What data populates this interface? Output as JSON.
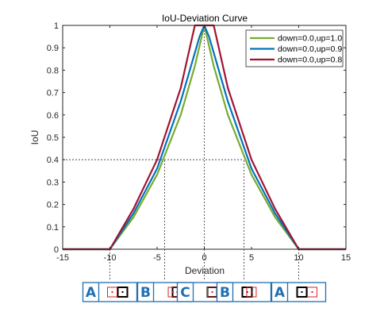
{
  "chart_data": {
    "type": "line",
    "title": "IoU-Deviation Curve",
    "xlabel": "Deviation",
    "ylabel": "IoU",
    "xlim": [
      -15,
      15
    ],
    "ylim": [
      0,
      1
    ],
    "xticks": [
      "-15",
      "-10",
      "-5",
      "0",
      "5",
      "10",
      "15"
    ],
    "yticks": [
      "0",
      "0.1",
      "0.2",
      "0.3",
      "0.4",
      "0.5",
      "0.6",
      "0.7",
      "0.8",
      "0.9",
      "1"
    ],
    "grid": false,
    "legend_position": "top-right",
    "series": [
      {
        "name": "down=0.0,up=1.0",
        "color": "#77ac30",
        "x": [
          -15,
          -10,
          -7.5,
          -5,
          -2.5,
          -1,
          0,
          1,
          2.5,
          5,
          7.5,
          10,
          15
        ],
        "y": [
          0,
          0,
          0.143,
          0.333,
          0.6,
          0.818,
          1.0,
          0.818,
          0.6,
          0.333,
          0.143,
          0,
          0
        ]
      },
      {
        "name": "down=0.0,up=0.9",
        "color": "#0072bd",
        "x": [
          -15,
          -10,
          -7.5,
          -5,
          -2.5,
          -0.5,
          0,
          0.5,
          2.5,
          5,
          7.5,
          10,
          15
        ],
        "y": [
          0,
          0,
          0.16,
          0.36,
          0.66,
          0.95,
          1.0,
          0.95,
          0.66,
          0.36,
          0.16,
          0,
          0
        ]
      },
      {
        "name": "down=0.0,up=0.8",
        "color": "#a2142f",
        "x": [
          -15,
          -10,
          -7.5,
          -5,
          -2.5,
          -1,
          1,
          2.5,
          5,
          7.5,
          10,
          15
        ],
        "y": [
          0,
          0,
          0.18,
          0.4,
          0.72,
          1.0,
          1.0,
          0.72,
          0.4,
          0.18,
          0,
          0
        ]
      }
    ],
    "reference_lines": [
      {
        "y": 1.0,
        "x_from": -15,
        "x_to": 0
      },
      {
        "y": 0.4,
        "x_from": -15,
        "x_to": 4.2
      },
      {
        "x": -4.2,
        "y_from": 0,
        "y_to": 0.4
      },
      {
        "x": 4.2,
        "y_from": 0,
        "y_to": 0.4
      },
      {
        "x": -10,
        "y_from": 0,
        "y_to": 0
      },
      {
        "x": 0,
        "y_from": 0,
        "y_to": 1
      },
      {
        "x": 10,
        "y_from": 0,
        "y_to": 0
      }
    ],
    "illustrations": [
      {
        "label": "A",
        "x": -10
      },
      {
        "label": "B",
        "x": -4.2
      },
      {
        "label": "C",
        "x": 0
      },
      {
        "label": "B",
        "x": 4.2
      },
      {
        "label": "A",
        "x": 10
      }
    ]
  }
}
